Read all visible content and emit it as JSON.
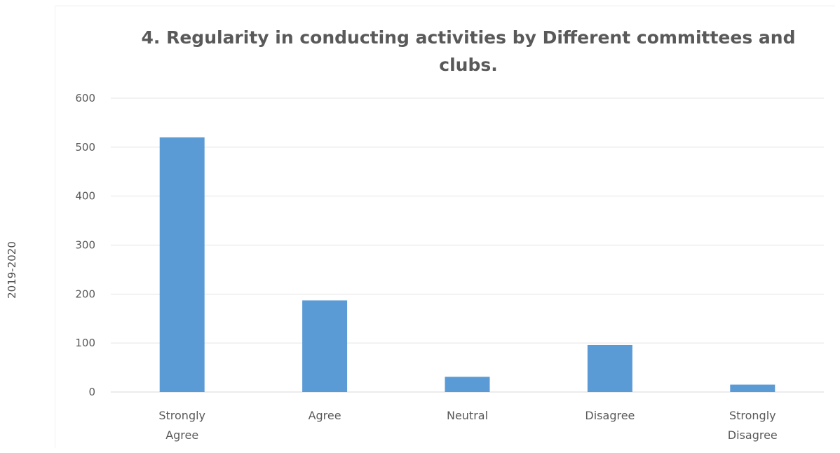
{
  "chart_data": {
    "type": "bar",
    "title_lines": [
      "4. Regularity in conducting activities by Different committees and",
      "clubs."
    ],
    "categories": [
      [
        "Strongly",
        "Agree"
      ],
      [
        "Agree"
      ],
      [
        "Neutral"
      ],
      [
        "Disagree"
      ],
      [
        "Strongly",
        "Disagree"
      ]
    ],
    "values": [
      520,
      187,
      31,
      96,
      15
    ],
    "ylabel": "2019-2020",
    "xlabel": "",
    "ylim": [
      0,
      600
    ],
    "yticks": [
      0,
      100,
      200,
      300,
      400,
      500,
      600
    ],
    "grid": true,
    "legend": "none",
    "bar_color": "#5b9bd5",
    "grid_color": "#e4e4e4"
  }
}
